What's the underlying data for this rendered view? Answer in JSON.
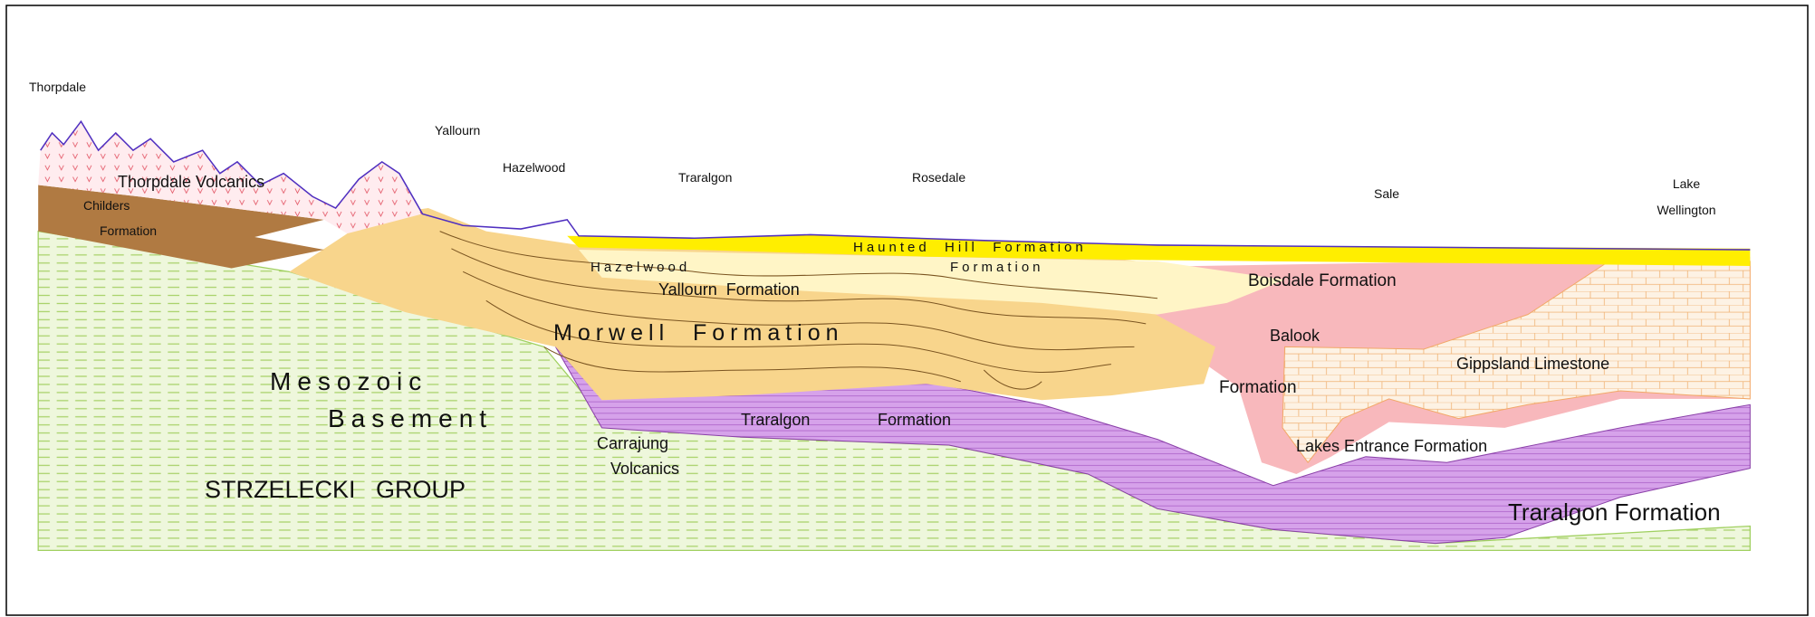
{
  "places": [
    {
      "lines": [
        "Thorpdale"
      ]
    },
    {
      "lines": [
        "Yallourn"
      ]
    },
    {
      "lines": [
        "Hazelwood"
      ]
    },
    {
      "lines": [
        "Traralgon"
      ]
    },
    {
      "lines": [
        "Rosedale"
      ]
    },
    {
      "lines": [
        "Sale"
      ]
    },
    {
      "lines": [
        "Lake",
        "Wellington"
      ]
    }
  ],
  "formations": [
    {
      "lines": [
        "Thorpdale Volcanics"
      ]
    },
    {
      "lines": [
        "Childers",
        "Formation"
      ]
    },
    {
      "lines": [
        "Haunted  Hill  Formation"
      ]
    },
    {
      "lines": [
        "Hazelwood"
      ]
    },
    {
      "lines": [
        "Formation"
      ]
    },
    {
      "lines": [
        "Yallourn  Formation"
      ]
    },
    {
      "lines": [
        "Boisdale Formation"
      ]
    },
    {
      "lines": [
        "Balook"
      ]
    },
    {
      "lines": [
        "Formation"
      ]
    },
    {
      "lines": [
        "Gippsland Limestone"
      ]
    },
    {
      "lines": [
        "Morwell  Formation"
      ]
    },
    {
      "lines": [
        "Mesozoic"
      ]
    },
    {
      "lines": [
        "Basement"
      ]
    },
    {
      "lines": [
        "Traralgon"
      ]
    },
    {
      "lines": [
        "Formation"
      ]
    },
    {
      "lines": [
        "Carrajung",
        "Volcanics"
      ]
    },
    {
      "lines": [
        "Lakes Entrance Formation"
      ]
    },
    {
      "lines": [
        "STRZELECKI   GROUP"
      ]
    },
    {
      "lines": [
        "Traralgon Formation"
      ]
    }
  ]
}
